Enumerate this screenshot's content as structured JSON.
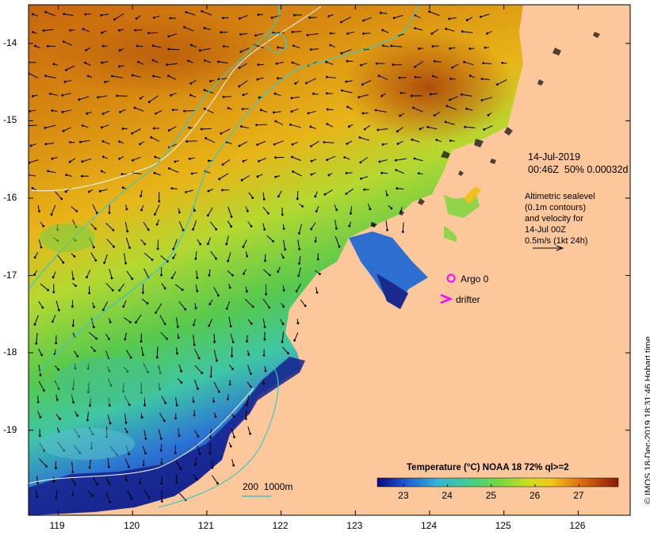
{
  "map": {
    "y_ticks": [
      "-14",
      "-15",
      "-16",
      "-17",
      "-18",
      "-19"
    ],
    "x_ticks": [
      "119",
      "120",
      "121",
      "122",
      "123",
      "124",
      "125",
      "126"
    ],
    "lon_range": [
      118.6,
      126.7
    ],
    "lat_range": [
      -13.5,
      -20.1
    ]
  },
  "annotations": {
    "date": "14-Jul-2019",
    "time_line": "00:46Z  50% 0.00032d",
    "altimetry": [
      "Altimetric sealevel",
      "(0.1m contours)",
      "and velocity for",
      "14-Jul 00Z",
      "0.5m/s (1kt 24h)"
    ],
    "argo_label": "Argo 0",
    "drifter_label": "drifter",
    "isobath_label": "200  1000m"
  },
  "colorbar": {
    "title": "Temperature (°C) NOAA 18 72% ql>=2",
    "ticks": [
      "23",
      "24",
      "25",
      "26",
      "27"
    ],
    "range": [
      22.4,
      27.9
    ]
  },
  "credit": "© IMOS 18-Dec-2019 18:31:46 Hobart time",
  "colors": {
    "land": "#fcc89b",
    "warm": "#c0520c",
    "cold": "#1a2a8c",
    "contour": "#ffffff",
    "isobath": "#3fc7c5",
    "argo": "#ff00ff"
  }
}
